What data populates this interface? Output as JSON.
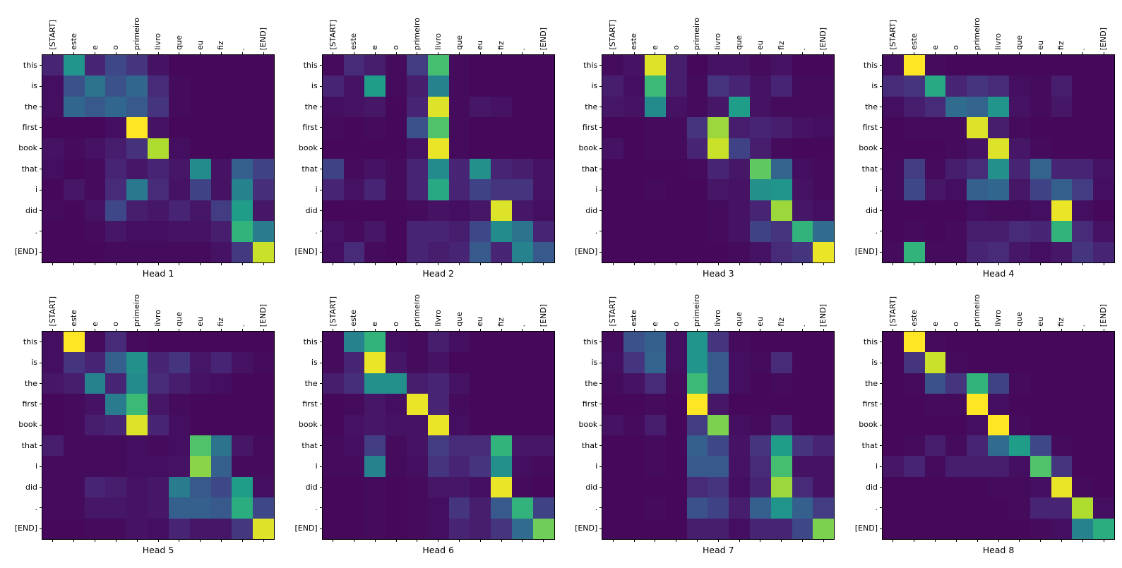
{
  "figure": {
    "background": "#ffffff",
    "text_color": "#000000"
  },
  "chart_data": {
    "type": "heatmap",
    "description": "Transformer cross-attention weights per head; source tokens (Portuguese) on x-axis, output tokens (English) on y-axis",
    "colormap": "viridis",
    "colormap_stops": [
      "#440154",
      "#482878",
      "#3e4989",
      "#31688e",
      "#26828e",
      "#1f9e89",
      "#35b779",
      "#6ece58",
      "#b5de2b",
      "#fde725"
    ],
    "value_range": [
      0,
      1
    ],
    "grid": "off",
    "x_tokens": [
      "[START]",
      "este",
      "e",
      "o",
      "primeiro",
      "livro",
      "que",
      "eu",
      "fiz",
      ".",
      "[END]"
    ],
    "y_tokens": [
      "this",
      "is",
      "the",
      "first",
      "book",
      "that",
      "i",
      "did",
      ".",
      "[END]"
    ],
    "heads": [
      {
        "title": "Head 1",
        "values": [
          [
            0.1,
            0.52,
            0.1,
            0.22,
            0.15,
            0.05,
            0.02,
            0.02,
            0.02,
            0.02,
            0.02
          ],
          [
            0.04,
            0.25,
            0.38,
            0.25,
            0.33,
            0.12,
            0.03,
            0.02,
            0.02,
            0.02,
            0.02
          ],
          [
            0.04,
            0.33,
            0.28,
            0.33,
            0.28,
            0.15,
            0.03,
            0.02,
            0.02,
            0.02,
            0.02
          ],
          [
            0.02,
            0.02,
            0.02,
            0.04,
            1.0,
            0.05,
            0.02,
            0.02,
            0.02,
            0.02,
            0.02
          ],
          [
            0.05,
            0.03,
            0.05,
            0.08,
            0.14,
            0.88,
            0.04,
            0.02,
            0.02,
            0.02,
            0.02
          ],
          [
            0.04,
            0.02,
            0.03,
            0.1,
            0.06,
            0.1,
            0.06,
            0.48,
            0.05,
            0.3,
            0.2
          ],
          [
            0.02,
            0.06,
            0.03,
            0.12,
            0.4,
            0.12,
            0.05,
            0.2,
            0.05,
            0.45,
            0.13
          ],
          [
            0.03,
            0.02,
            0.05,
            0.22,
            0.08,
            0.06,
            0.1,
            0.06,
            0.18,
            0.55,
            0.06
          ],
          [
            0.02,
            0.02,
            0.03,
            0.06,
            0.04,
            0.04,
            0.05,
            0.05,
            0.08,
            0.65,
            0.42
          ],
          [
            0.02,
            0.02,
            0.02,
            0.03,
            0.03,
            0.03,
            0.03,
            0.03,
            0.05,
            0.17,
            0.92
          ]
        ]
      },
      {
        "title": "Head 2",
        "values": [
          [
            0.03,
            0.12,
            0.08,
            0.03,
            0.18,
            0.7,
            0.03,
            0.02,
            0.02,
            0.02,
            0.02
          ],
          [
            0.1,
            0.05,
            0.55,
            0.03,
            0.08,
            0.45,
            0.03,
            0.02,
            0.02,
            0.02,
            0.02
          ],
          [
            0.04,
            0.05,
            0.06,
            0.02,
            0.1,
            0.95,
            0.03,
            0.06,
            0.05,
            0.02,
            0.02
          ],
          [
            0.03,
            0.02,
            0.03,
            0.02,
            0.25,
            0.72,
            0.03,
            0.02,
            0.02,
            0.02,
            0.02
          ],
          [
            0.02,
            0.02,
            0.02,
            0.02,
            0.05,
            0.97,
            0.03,
            0.02,
            0.02,
            0.02,
            0.02
          ],
          [
            0.2,
            0.03,
            0.05,
            0.03,
            0.1,
            0.48,
            0.1,
            0.5,
            0.1,
            0.08,
            0.05
          ],
          [
            0.1,
            0.05,
            0.1,
            0.03,
            0.1,
            0.6,
            0.1,
            0.2,
            0.15,
            0.15,
            0.05
          ],
          [
            0.02,
            0.02,
            0.02,
            0.02,
            0.03,
            0.05,
            0.04,
            0.06,
            0.95,
            0.06,
            0.04
          ],
          [
            0.05,
            0.03,
            0.06,
            0.02,
            0.1,
            0.1,
            0.08,
            0.22,
            0.48,
            0.38,
            0.1
          ],
          [
            0.04,
            0.12,
            0.03,
            0.02,
            0.1,
            0.08,
            0.1,
            0.28,
            0.1,
            0.45,
            0.28
          ]
        ]
      },
      {
        "title": "Head 3",
        "values": [
          [
            0.03,
            0.05,
            0.95,
            0.08,
            0.02,
            0.05,
            0.05,
            0.03,
            0.05,
            0.02,
            0.02
          ],
          [
            0.08,
            0.04,
            0.68,
            0.08,
            0.03,
            0.15,
            0.1,
            0.05,
            0.1,
            0.03,
            0.03
          ],
          [
            0.06,
            0.05,
            0.48,
            0.05,
            0.03,
            0.06,
            0.55,
            0.05,
            0.03,
            0.03,
            0.03
          ],
          [
            0.02,
            0.02,
            0.03,
            0.03,
            0.15,
            0.85,
            0.08,
            0.1,
            0.08,
            0.05,
            0.04
          ],
          [
            0.05,
            0.02,
            0.03,
            0.03,
            0.1,
            0.92,
            0.2,
            0.08,
            0.03,
            0.02,
            0.02
          ],
          [
            0.02,
            0.02,
            0.02,
            0.02,
            0.03,
            0.1,
            0.06,
            0.75,
            0.32,
            0.04,
            0.03
          ],
          [
            0.02,
            0.02,
            0.03,
            0.02,
            0.02,
            0.06,
            0.05,
            0.5,
            0.52,
            0.05,
            0.03
          ],
          [
            0.02,
            0.02,
            0.02,
            0.02,
            0.02,
            0.03,
            0.05,
            0.1,
            0.85,
            0.06,
            0.04
          ],
          [
            0.02,
            0.02,
            0.02,
            0.02,
            0.02,
            0.03,
            0.05,
            0.2,
            0.15,
            0.65,
            0.35
          ],
          [
            0.02,
            0.02,
            0.02,
            0.02,
            0.02,
            0.02,
            0.03,
            0.05,
            0.12,
            0.15,
            0.97
          ]
        ]
      },
      {
        "title": "Head 4",
        "values": [
          [
            0.04,
            1.0,
            0.03,
            0.02,
            0.02,
            0.02,
            0.02,
            0.02,
            0.02,
            0.02,
            0.02
          ],
          [
            0.12,
            0.15,
            0.6,
            0.1,
            0.15,
            0.12,
            0.04,
            0.03,
            0.08,
            0.02,
            0.02
          ],
          [
            0.04,
            0.08,
            0.12,
            0.35,
            0.32,
            0.52,
            0.05,
            0.03,
            0.06,
            0.02,
            0.02
          ],
          [
            0.02,
            0.03,
            0.03,
            0.03,
            0.95,
            0.08,
            0.03,
            0.02,
            0.02,
            0.02,
            0.02
          ],
          [
            0.02,
            0.02,
            0.02,
            0.03,
            0.05,
            0.95,
            0.06,
            0.03,
            0.02,
            0.02,
            0.02
          ],
          [
            0.03,
            0.18,
            0.03,
            0.08,
            0.12,
            0.5,
            0.1,
            0.32,
            0.1,
            0.1,
            0.05
          ],
          [
            0.03,
            0.22,
            0.06,
            0.04,
            0.3,
            0.33,
            0.06,
            0.2,
            0.3,
            0.18,
            0.04
          ],
          [
            0.02,
            0.02,
            0.02,
            0.02,
            0.04,
            0.03,
            0.03,
            0.04,
            0.97,
            0.04,
            0.02
          ],
          [
            0.02,
            0.03,
            0.02,
            0.03,
            0.08,
            0.08,
            0.12,
            0.1,
            0.65,
            0.12,
            0.05
          ],
          [
            0.03,
            0.65,
            0.03,
            0.03,
            0.1,
            0.12,
            0.06,
            0.04,
            0.06,
            0.15,
            0.1
          ]
        ]
      },
      {
        "title": "Head 5",
        "values": [
          [
            0.04,
            1.0,
            0.03,
            0.12,
            0.03,
            0.02,
            0.02,
            0.02,
            0.02,
            0.02,
            0.02
          ],
          [
            0.04,
            0.15,
            0.1,
            0.3,
            0.5,
            0.1,
            0.15,
            0.06,
            0.1,
            0.05,
            0.03
          ],
          [
            0.06,
            0.08,
            0.45,
            0.1,
            0.48,
            0.12,
            0.08,
            0.05,
            0.04,
            0.02,
            0.02
          ],
          [
            0.02,
            0.03,
            0.05,
            0.42,
            0.68,
            0.06,
            0.03,
            0.02,
            0.02,
            0.02,
            0.02
          ],
          [
            0.02,
            0.03,
            0.08,
            0.1,
            0.95,
            0.1,
            0.04,
            0.02,
            0.02,
            0.02,
            0.02
          ],
          [
            0.08,
            0.03,
            0.03,
            0.03,
            0.04,
            0.03,
            0.04,
            0.72,
            0.38,
            0.06,
            0.03
          ],
          [
            0.03,
            0.03,
            0.03,
            0.03,
            0.04,
            0.04,
            0.05,
            0.82,
            0.3,
            0.03,
            0.03
          ],
          [
            0.03,
            0.03,
            0.1,
            0.08,
            0.05,
            0.06,
            0.42,
            0.28,
            0.22,
            0.55,
            0.04
          ],
          [
            0.03,
            0.03,
            0.06,
            0.06,
            0.05,
            0.06,
            0.3,
            0.3,
            0.28,
            0.62,
            0.22
          ],
          [
            0.02,
            0.02,
            0.03,
            0.03,
            0.05,
            0.04,
            0.1,
            0.06,
            0.06,
            0.16,
            0.95
          ]
        ]
      },
      {
        "title": "Head 6",
        "values": [
          [
            0.03,
            0.45,
            0.65,
            0.04,
            0.03,
            0.08,
            0.04,
            0.02,
            0.02,
            0.02,
            0.02
          ],
          [
            0.03,
            0.1,
            0.97,
            0.06,
            0.03,
            0.05,
            0.02,
            0.02,
            0.02,
            0.02,
            0.02
          ],
          [
            0.08,
            0.13,
            0.5,
            0.5,
            0.08,
            0.1,
            0.05,
            0.02,
            0.02,
            0.02,
            0.02
          ],
          [
            0.02,
            0.03,
            0.06,
            0.04,
            0.97,
            0.1,
            0.03,
            0.02,
            0.02,
            0.02,
            0.02
          ],
          [
            0.02,
            0.05,
            0.06,
            0.05,
            0.05,
            0.97,
            0.04,
            0.02,
            0.02,
            0.02,
            0.02
          ],
          [
            0.03,
            0.04,
            0.18,
            0.03,
            0.05,
            0.18,
            0.12,
            0.12,
            0.65,
            0.06,
            0.06
          ],
          [
            0.03,
            0.03,
            0.45,
            0.03,
            0.04,
            0.15,
            0.1,
            0.15,
            0.5,
            0.04,
            0.03
          ],
          [
            0.02,
            0.02,
            0.03,
            0.02,
            0.03,
            0.06,
            0.06,
            0.04,
            0.97,
            0.03,
            0.02
          ],
          [
            0.02,
            0.02,
            0.03,
            0.02,
            0.03,
            0.04,
            0.15,
            0.08,
            0.28,
            0.65,
            0.2
          ],
          [
            0.02,
            0.02,
            0.03,
            0.02,
            0.03,
            0.04,
            0.1,
            0.08,
            0.15,
            0.35,
            0.78
          ]
        ]
      },
      {
        "title": "Head 7",
        "values": [
          [
            0.03,
            0.25,
            0.3,
            0.04,
            0.52,
            0.15,
            0.03,
            0.02,
            0.02,
            0.02,
            0.02
          ],
          [
            0.04,
            0.15,
            0.32,
            0.04,
            0.52,
            0.28,
            0.04,
            0.03,
            0.12,
            0.02,
            0.02
          ],
          [
            0.03,
            0.05,
            0.12,
            0.03,
            0.68,
            0.28,
            0.04,
            0.02,
            0.03,
            0.02,
            0.02
          ],
          [
            0.02,
            0.02,
            0.03,
            0.02,
            1.0,
            0.06,
            0.02,
            0.02,
            0.02,
            0.02,
            0.02
          ],
          [
            0.05,
            0.03,
            0.08,
            0.02,
            0.18,
            0.8,
            0.04,
            0.03,
            0.1,
            0.02,
            0.02
          ],
          [
            0.02,
            0.02,
            0.03,
            0.02,
            0.3,
            0.22,
            0.05,
            0.15,
            0.55,
            0.15,
            0.1
          ],
          [
            0.02,
            0.02,
            0.03,
            0.02,
            0.28,
            0.28,
            0.05,
            0.12,
            0.7,
            0.05,
            0.05
          ],
          [
            0.02,
            0.02,
            0.02,
            0.02,
            0.12,
            0.15,
            0.04,
            0.1,
            0.85,
            0.12,
            0.05
          ],
          [
            0.02,
            0.02,
            0.03,
            0.02,
            0.25,
            0.2,
            0.08,
            0.3,
            0.52,
            0.3,
            0.18
          ],
          [
            0.02,
            0.02,
            0.02,
            0.02,
            0.08,
            0.08,
            0.04,
            0.1,
            0.1,
            0.22,
            0.8
          ]
        ]
      },
      {
        "title": "Head 8",
        "values": [
          [
            0.02,
            1.0,
            0.03,
            0.02,
            0.02,
            0.02,
            0.02,
            0.02,
            0.02,
            0.02,
            0.02
          ],
          [
            0.02,
            0.15,
            0.92,
            0.03,
            0.02,
            0.02,
            0.02,
            0.02,
            0.02,
            0.02,
            0.02
          ],
          [
            0.02,
            0.03,
            0.25,
            0.15,
            0.65,
            0.2,
            0.03,
            0.02,
            0.02,
            0.02,
            0.02
          ],
          [
            0.02,
            0.02,
            0.03,
            0.03,
            1.0,
            0.04,
            0.02,
            0.02,
            0.02,
            0.02,
            0.02
          ],
          [
            0.02,
            0.02,
            0.02,
            0.02,
            0.04,
            1.0,
            0.03,
            0.02,
            0.02,
            0.02,
            0.02
          ],
          [
            0.02,
            0.03,
            0.08,
            0.03,
            0.1,
            0.35,
            0.55,
            0.22,
            0.03,
            0.02,
            0.02
          ],
          [
            0.06,
            0.1,
            0.03,
            0.08,
            0.08,
            0.08,
            0.04,
            0.72,
            0.15,
            0.02,
            0.02
          ],
          [
            0.02,
            0.02,
            0.02,
            0.02,
            0.02,
            0.03,
            0.03,
            0.04,
            0.97,
            0.03,
            0.02
          ],
          [
            0.02,
            0.02,
            0.02,
            0.02,
            0.02,
            0.02,
            0.03,
            0.1,
            0.1,
            0.88,
            0.04
          ],
          [
            0.02,
            0.02,
            0.02,
            0.02,
            0.02,
            0.02,
            0.02,
            0.03,
            0.04,
            0.45,
            0.62
          ]
        ]
      }
    ]
  }
}
